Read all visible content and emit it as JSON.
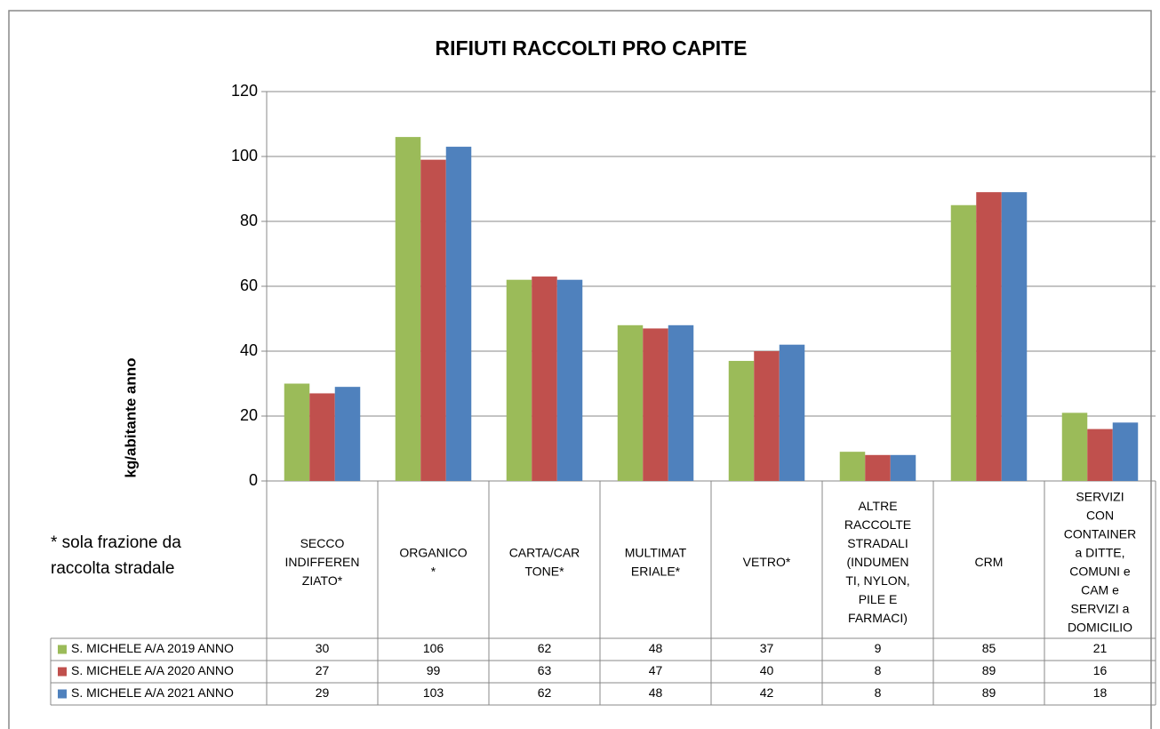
{
  "chart_data": {
    "type": "bar",
    "title": "RIFIUTI RACCOLTI PRO CAPITE",
    "y_label": "kg/abitante anno",
    "annotation": [
      "* sola frazione da",
      "raccolta stradale"
    ],
    "categories": [
      [
        "SECCO",
        "INDIFFEREN",
        "ZIATO*"
      ],
      [
        "ORGANICO",
        "*"
      ],
      [
        "CARTA/CAR",
        "TONE*"
      ],
      [
        "MULTIMAT",
        "ERIALE*"
      ],
      [
        "VETRO*"
      ],
      [
        "ALTRE",
        "RACCOLTE",
        "STRADALI",
        "(INDUMEN",
        "TI, NYLON,",
        "PILE E",
        "FARMACI)"
      ],
      [
        "CRM"
      ],
      [
        "SERVIZI",
        "CON",
        "CONTAINER",
        "a DITTE,",
        "COMUNI e",
        "CAM e",
        "SERVIZI a",
        "DOMICILIO"
      ]
    ],
    "series": [
      {
        "name": "S. MICHELE A/A 2019 ANNO",
        "color": "#9bbb59",
        "values": [
          30,
          106,
          62,
          48,
          37,
          9,
          85,
          21
        ]
      },
      {
        "name": "S. MICHELE A/A 2020 ANNO",
        "color": "#c0504d",
        "values": [
          27,
          99,
          63,
          47,
          40,
          8,
          89,
          16
        ]
      },
      {
        "name": "S. MICHELE A/A 2021 ANNO",
        "color": "#4f81bd",
        "values": [
          29,
          103,
          62,
          48,
          42,
          8,
          89,
          18
        ]
      }
    ],
    "ylim": [
      0,
      120
    ],
    "yticks": [
      0,
      20,
      40,
      60,
      80,
      100,
      120
    ],
    "grid": true
  }
}
